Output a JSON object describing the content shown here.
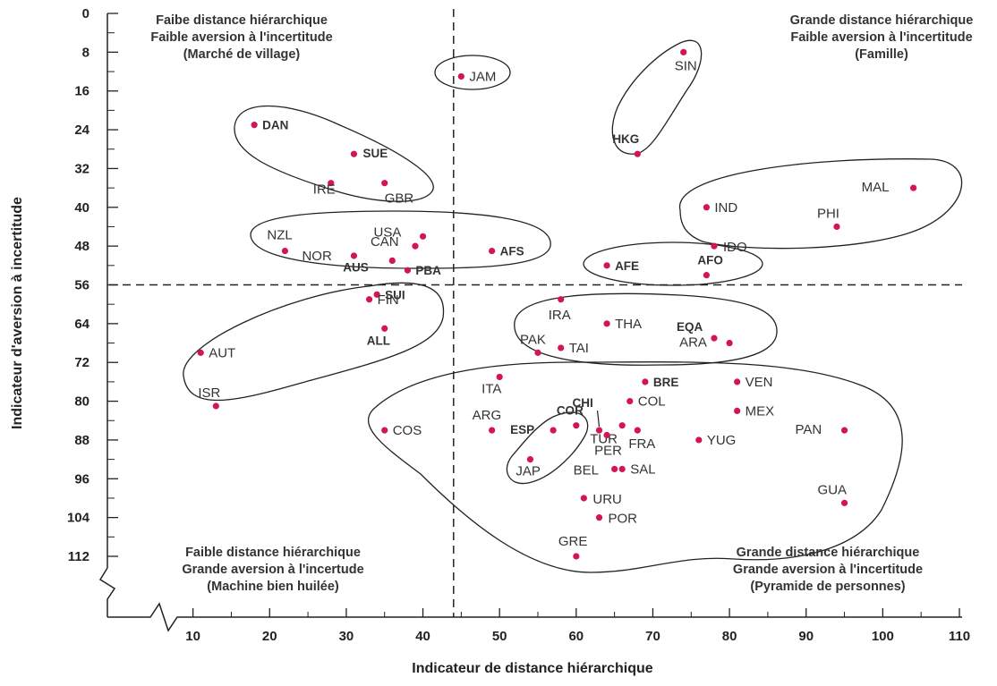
{
  "chart_data": {
    "type": "scatter",
    "xlabel": "Indicateur de distance hiérarchique",
    "ylabel": "Indicateur d'aversion à incertitude",
    "xlim": [
      0,
      110
    ],
    "ylim": [
      0,
      112
    ],
    "y_inverted": true,
    "xticks": [
      10,
      20,
      30,
      40,
      50,
      60,
      70,
      80,
      90,
      100,
      110
    ],
    "yticks": [
      0,
      8,
      16,
      24,
      32,
      40,
      48,
      56,
      64,
      72,
      80,
      88,
      96,
      104,
      112
    ],
    "dividers": {
      "x": 44,
      "y": 56
    },
    "quadrants": [
      {
        "position": "top-left",
        "lines": [
          "Faibe distance hiérarchique",
          "Faible aversion à l'incertitude",
          "(Marché de village)"
        ]
      },
      {
        "position": "top-right",
        "lines": [
          "Grande distance hiérarchique",
          "Faible aversion à l'incertitude",
          "(Famille)"
        ]
      },
      {
        "position": "bottom-left",
        "lines": [
          "Faible distance hiérarchique",
          "Grande aversion à l'incertude",
          "(Machine bien huilée)"
        ]
      },
      {
        "position": "bottom-right",
        "lines": [
          "Grande distance hiérarchique",
          "Grande aversion à l'incertitude",
          "(Pyramide de personnes)"
        ]
      }
    ],
    "points": [
      {
        "label": "JAM",
        "x": 45,
        "y": 13,
        "bold": false
      },
      {
        "label": "SIN",
        "x": 74,
        "y": 8,
        "bold": false
      },
      {
        "label": "DAN",
        "x": 18,
        "y": 23,
        "bold": true
      },
      {
        "label": "HKG",
        "x": 68,
        "y": 29,
        "bold": true
      },
      {
        "label": "SUE",
        "x": 31,
        "y": 29,
        "bold": true
      },
      {
        "label": "IRE",
        "x": 28,
        "y": 35,
        "bold": false
      },
      {
        "label": "GBR",
        "x": 35,
        "y": 35,
        "bold": false
      },
      {
        "label": "MAL",
        "x": 104,
        "y": 36,
        "bold": false
      },
      {
        "label": "IND",
        "x": 77,
        "y": 40,
        "bold": false
      },
      {
        "label": "PHI",
        "x": 94,
        "y": 44,
        "bold": false
      },
      {
        "label": "USA",
        "x": 40,
        "y": 46,
        "bold": false
      },
      {
        "label": "NZL",
        "x": 22,
        "y": 49,
        "bold": false
      },
      {
        "label": "IDO",
        "x": 78,
        "y": 48,
        "bold": false
      },
      {
        "label": "CAN",
        "x": 39,
        "y": 48,
        "bold": false
      },
      {
        "label": "AFS",
        "x": 49,
        "y": 49,
        "bold": true
      },
      {
        "label": "NOR",
        "x": 31,
        "y": 50,
        "bold": false
      },
      {
        "label": "AFE",
        "x": 64,
        "y": 52,
        "bold": true
      },
      {
        "label": "AUS",
        "x": 36,
        "y": 51,
        "bold": true
      },
      {
        "label": "PBA",
        "x": 38,
        "y": 53,
        "bold": true
      },
      {
        "label": "AFO",
        "x": 77,
        "y": 54,
        "bold": true
      },
      {
        "label": "SUI",
        "x": 34,
        "y": 58,
        "bold": true
      },
      {
        "label": "FIN",
        "x": 33,
        "y": 59,
        "bold": false
      },
      {
        "label": "IRA",
        "x": 58,
        "y": 59,
        "bold": false
      },
      {
        "label": "THA",
        "x": 64,
        "y": 64,
        "bold": false
      },
      {
        "label": "EQA",
        "x": 78,
        "y": 67,
        "bold": true
      },
      {
        "label": "ALL",
        "x": 35,
        "y": 65,
        "bold": true
      },
      {
        "label": "PAK",
        "x": 55,
        "y": 70,
        "bold": false
      },
      {
        "label": "TAI",
        "x": 58,
        "y": 69,
        "bold": false
      },
      {
        "label": "ARA",
        "x": 80,
        "y": 68,
        "bold": false
      },
      {
        "label": "AUT",
        "x": 11,
        "y": 70,
        "bold": false
      },
      {
        "label": "ITA",
        "x": 50,
        "y": 75,
        "bold": false
      },
      {
        "label": "BRE",
        "x": 69,
        "y": 76,
        "bold": true
      },
      {
        "label": "VEN",
        "x": 81,
        "y": 76,
        "bold": false
      },
      {
        "label": "ISR",
        "x": 13,
        "y": 81,
        "bold": false
      },
      {
        "label": "CHI",
        "x": 63,
        "y": 86,
        "bold": true
      },
      {
        "label": "COL",
        "x": 67,
        "y": 80,
        "bold": false
      },
      {
        "label": "MEX",
        "x": 81,
        "y": 82,
        "bold": false
      },
      {
        "label": "COR",
        "x": 60,
        "y": 85,
        "bold": true
      },
      {
        "label": "ARG",
        "x": 49,
        "y": 86,
        "bold": false
      },
      {
        "label": "ESP",
        "x": 57,
        "y": 86,
        "bold": true
      },
      {
        "label": "COS",
        "x": 35,
        "y": 86,
        "bold": false
      },
      {
        "label": "TUR",
        "x": 66,
        "y": 85,
        "bold": false
      },
      {
        "label": "PAN",
        "x": 95,
        "y": 86,
        "bold": false
      },
      {
        "label": "FRA",
        "x": 68,
        "y": 86,
        "bold": false
      },
      {
        "label": "YUG",
        "x": 76,
        "y": 88,
        "bold": false
      },
      {
        "label": "PER",
        "x": 64,
        "y": 87,
        "bold": false
      },
      {
        "label": "JAP",
        "x": 54,
        "y": 92,
        "bold": false
      },
      {
        "label": "BEL",
        "x": 65,
        "y": 94,
        "bold": false
      },
      {
        "label": "SAL",
        "x": 66,
        "y": 94,
        "bold": false
      },
      {
        "label": "URU",
        "x": 61,
        "y": 100,
        "bold": false
      },
      {
        "label": "GUA",
        "x": 95,
        "y": 101,
        "bold": false
      },
      {
        "label": "POR",
        "x": 63,
        "y": 104,
        "bold": false
      },
      {
        "label": "GRE",
        "x": 60,
        "y": 112,
        "bold": false
      }
    ]
  }
}
